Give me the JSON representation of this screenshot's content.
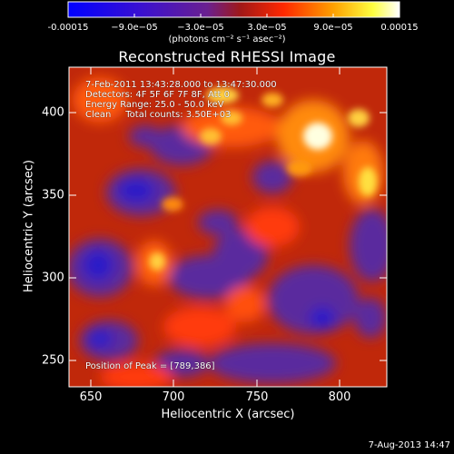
{
  "colorbar": {
    "tick_labels": [
      "-0.00015",
      "−9.0e−05",
      "−3.0e−05",
      "3.0e−05",
      "9.0e−05",
      "0.00015"
    ],
    "unit_label": "(photons cm⁻² s⁻¹ asec⁻²)"
  },
  "chart_data": {
    "type": "heatmap",
    "title": "Reconstructed RHESSI Image",
    "xlabel": "Heliocentric X (arcsec)",
    "ylabel": "Heliocentric Y (arcsec)",
    "xlim": [
      637,
      827
    ],
    "ylim": [
      233,
      427
    ],
    "xticks": [
      "650",
      "700",
      "750",
      "800"
    ],
    "yticks": [
      "250",
      "300",
      "350",
      "400"
    ],
    "colormap": "blue-purple-red-orange-yellow-white",
    "value_range": [
      -0.00015,
      0.00015
    ],
    "annotations": [
      "7-Feb-2011 13:43:28.000 to 13:47:30.000",
      "Detectors: 4F 5F 6F 7F 8F, Att 0",
      "Energy Range: 25.0 - 50.0 keV",
      "Clean     Total counts: 3.50E+03"
    ],
    "peak_label": "Position of Peak = [789,386]",
    "peak": [
      789,
      386
    ]
  },
  "footer": {
    "date": "7-Aug-2013 14:47"
  }
}
